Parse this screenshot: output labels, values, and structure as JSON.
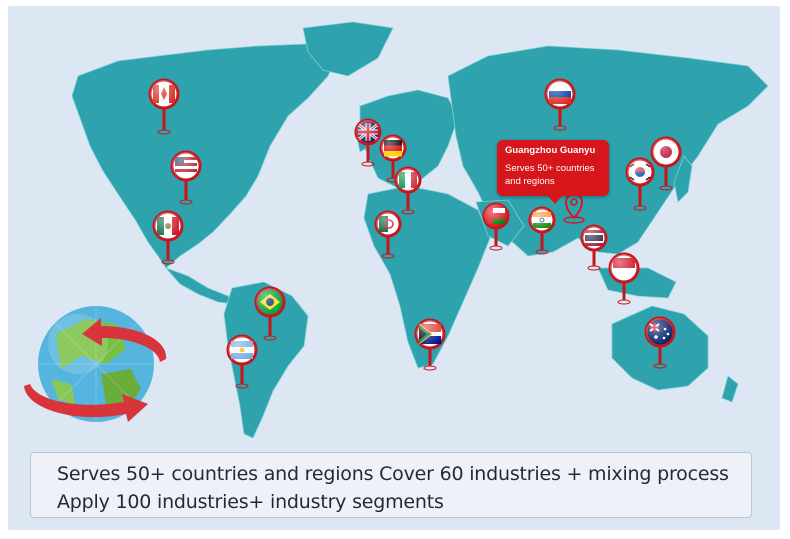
{
  "callout": {
    "title": "Guangzhou Guanyu",
    "line1": "Serves 50+ countries",
    "line2": "and regions"
  },
  "info": {
    "line1": "Serves 50+ countries and regions Cover 60 industries + mixing process",
    "line2": "Apply 100 industries+ industry segments"
  },
  "colors": {
    "land": "#2ea3ad",
    "background": "#dce7f3",
    "accent_red": "#d7161c"
  },
  "flags": [
    "canada",
    "usa",
    "mexico",
    "brazil",
    "argentina",
    "uk",
    "germany",
    "italy",
    "algeria",
    "oman",
    "india",
    "thailand",
    "indonesia",
    "russia",
    "south-korea",
    "japan",
    "australia",
    "south-africa"
  ]
}
